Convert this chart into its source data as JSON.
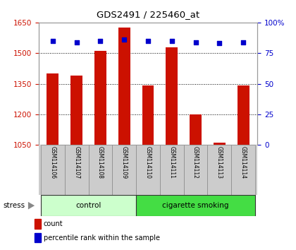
{
  "title": "GDS2491 / 225460_at",
  "samples": [
    "GSM114106",
    "GSM114107",
    "GSM114108",
    "GSM114109",
    "GSM114110",
    "GSM114111",
    "GSM114112",
    "GSM114113",
    "GSM114114"
  ],
  "counts": [
    1400,
    1390,
    1510,
    1625,
    1340,
    1530,
    1200,
    1060,
    1340
  ],
  "percentiles": [
    85,
    84,
    85,
    86,
    85,
    85,
    84,
    83,
    84
  ],
  "ylim_left": [
    1050,
    1650
  ],
  "ylim_right": [
    0,
    100
  ],
  "yticks_left": [
    1050,
    1200,
    1350,
    1500,
    1650
  ],
  "yticks_right": [
    0,
    25,
    50,
    75,
    100
  ],
  "bar_color": "#cc1100",
  "dot_color": "#0000cc",
  "groups": [
    {
      "label": "control",
      "indices": [
        0,
        1,
        2,
        3
      ],
      "color": "#ccffcc"
    },
    {
      "label": "cigarette smoking",
      "indices": [
        4,
        5,
        6,
        7,
        8
      ],
      "color": "#44dd44"
    }
  ],
  "stress_label": "stress",
  "legend_count_label": "count",
  "legend_pct_label": "percentile rank within the sample",
  "grid_color": "#888888",
  "background_color": "#ffffff",
  "tick_label_color_left": "#cc1100",
  "tick_label_color_right": "#0000cc",
  "label_box_color": "#cccccc",
  "bar_width": 0.5
}
